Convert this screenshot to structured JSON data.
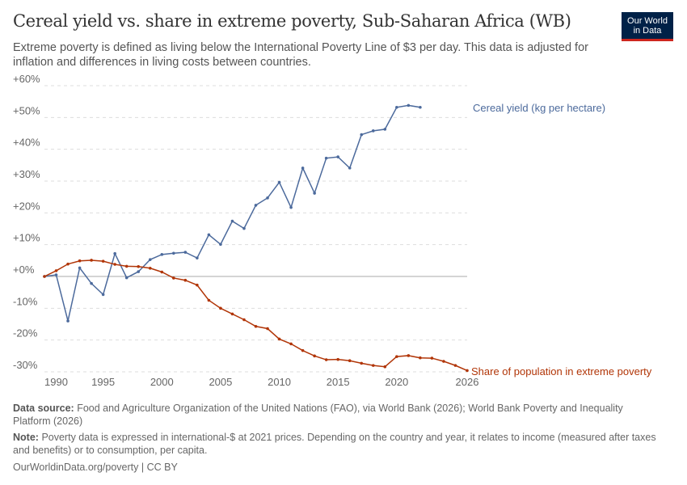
{
  "title": "Cereal yield vs. share in extreme poverty, Sub-Saharan Africa (WB)",
  "subtitle": "Extreme poverty is defined as living below the International Poverty Line of $3 per day. This data is adjusted for inflation and differences in living costs between countries.",
  "logo": {
    "line1": "Our World",
    "line2": "in Data",
    "bg": "#002147",
    "accent": "#ce261e"
  },
  "footer": {
    "source_label": "Data source:",
    "source": "Food and Agriculture Organization of the United Nations (FAO), via World Bank (2026); World Bank Poverty and Inequality Platform (2026)",
    "note_label": "Note:",
    "note": "Poverty data is expressed in international-$ at 2021 prices. Depending on the country and year, it relates to income (measured after taxes and benefits) or to consumption, per capita.",
    "link": "OurWorldinData.org/poverty | CC BY"
  },
  "chart_data": {
    "type": "line",
    "xlim": [
      1990,
      2026
    ],
    "ylim": [
      -30,
      60
    ],
    "x_ticks": [
      "1990",
      "1995",
      "2000",
      "2005",
      "2010",
      "2015",
      "2020",
      "2026"
    ],
    "y_ticks": [
      "-30%",
      "-20%",
      "-10%",
      "+0%",
      "+10%",
      "+20%",
      "+30%",
      "+40%",
      "+50%",
      "+60%"
    ],
    "grid": "horizontal dashed",
    "series": [
      {
        "name": "Cereal yield (kg per hectare)",
        "color": "#4c6a9c",
        "x": [
          1990,
          1991,
          1992,
          1993,
          1994,
          1995,
          1996,
          1997,
          1998,
          1999,
          2000,
          2001,
          2002,
          2003,
          2004,
          2005,
          2006,
          2007,
          2008,
          2009,
          2010,
          2011,
          2012,
          2013,
          2014,
          2015,
          2016,
          2017,
          2018,
          2019,
          2020,
          2021,
          2022
        ],
        "values": [
          0,
          0.5,
          -14,
          2.7,
          -2.2,
          -5.7,
          7.2,
          -0.4,
          1.5,
          5.3,
          6.9,
          7.3,
          7.6,
          5.8,
          13.1,
          10.1,
          17.4,
          15.1,
          22.4,
          24.7,
          29.6,
          21.7,
          34.1,
          26.2,
          37.2,
          37.6,
          34.1,
          44.6,
          45.8,
          46.3,
          53.2,
          53.8,
          53.2
        ]
      },
      {
        "name": "Share of population in extreme poverty",
        "color": "#b13507",
        "x": [
          1990,
          1991,
          1992,
          1993,
          1994,
          1995,
          1996,
          1997,
          1998,
          1999,
          2000,
          2001,
          2002,
          2003,
          2004,
          2005,
          2006,
          2007,
          2008,
          2009,
          2010,
          2011,
          2012,
          2013,
          2014,
          2015,
          2016,
          2017,
          2018,
          2019,
          2020,
          2021,
          2022,
          2023,
          2024,
          2025,
          2026
        ],
        "values": [
          0,
          1.8,
          3.9,
          4.9,
          5.1,
          4.8,
          3.8,
          3.2,
          3.1,
          2.6,
          1.4,
          -0.5,
          -1.2,
          -2.7,
          -7.5,
          -10,
          -11.8,
          -13.6,
          -15.7,
          -16.4,
          -19.7,
          -21.2,
          -23.3,
          -25,
          -26.2,
          -26.1,
          -26.5,
          -27.3,
          -28,
          -28.4,
          -25.2,
          -24.9,
          -25.6,
          -25.7,
          -26.7,
          -28,
          -29.6
        ]
      }
    ]
  }
}
